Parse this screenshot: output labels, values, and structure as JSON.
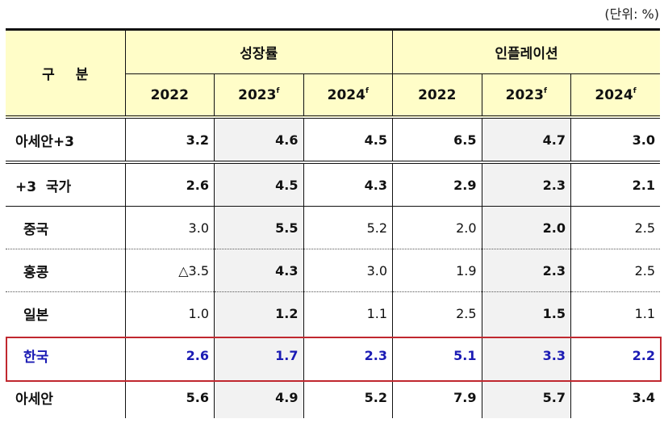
{
  "unit_label": "(단위: %)",
  "header": {
    "label": "구   분",
    "groups": [
      "성장률",
      "인플레이션"
    ],
    "years": [
      {
        "year": "2022",
        "sup": ""
      },
      {
        "year": "2023",
        "sup": "f"
      },
      {
        "year": "2024",
        "sup": "f"
      },
      {
        "year": "2022",
        "sup": ""
      },
      {
        "year": "2023",
        "sup": "f"
      },
      {
        "year": "2024",
        "sup": "f"
      }
    ]
  },
  "rows": [
    {
      "name": "아세안+3",
      "values": [
        "3.2",
        "4.6",
        "4.5",
        "6.5",
        "4.7",
        "3.0"
      ]
    },
    {
      "name": "+3  국가",
      "values": [
        "2.6",
        "4.5",
        "4.3",
        "2.9",
        "2.3",
        "2.1"
      ]
    },
    {
      "name": "중국",
      "values": [
        "3.0",
        "5.5",
        "5.2",
        "2.0",
        "2.0",
        "2.5"
      ]
    },
    {
      "name": "홍콩",
      "values": [
        "△3.5",
        "4.3",
        "3.0",
        "1.9",
        "2.3",
        "2.5"
      ]
    },
    {
      "name": "일본",
      "values": [
        "1.0",
        "1.2",
        "1.1",
        "2.5",
        "1.5",
        "1.1"
      ]
    },
    {
      "name": "한국",
      "values": [
        "2.6",
        "1.7",
        "2.3",
        "5.1",
        "3.3",
        "2.2"
      ]
    },
    {
      "name": "아세안",
      "values": [
        "5.6",
        "4.9",
        "5.2",
        "7.9",
        "5.7",
        "3.4"
      ]
    }
  ],
  "highlight_color": "#c0282f",
  "korea_color": "#1b1bb4"
}
